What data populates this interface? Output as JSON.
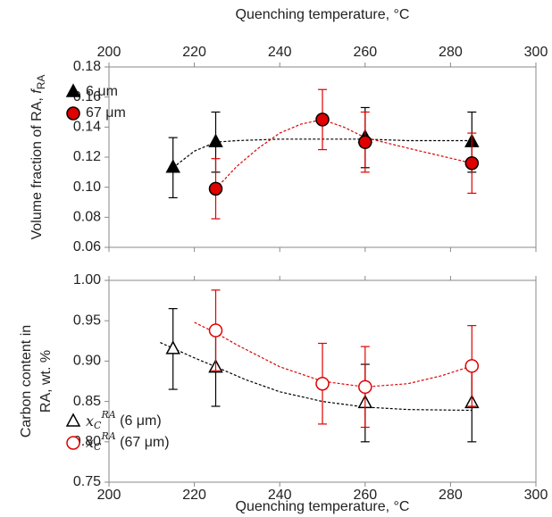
{
  "chart_data": [
    {
      "type": "scatter",
      "xlabel": "Quenching temperature, °C",
      "xaxis_position": "top",
      "ylabel": "Volume fraction of RA, ",
      "ylabel_symbol": "f",
      "ylabel_subscript": "RA",
      "xlim": [
        200,
        300
      ],
      "xticks": [
        200,
        220,
        240,
        260,
        280,
        300
      ],
      "ylim": [
        0.06,
        0.18
      ],
      "yticks": [
        0.06,
        0.08,
        {
          "value": 0.1,
          "label": "0.10"
        },
        0.12,
        0.14,
        0.16,
        0.18
      ],
      "legend": "upper left",
      "series": [
        {
          "name": "6 μm",
          "color": "#000000",
          "marker": "triangle",
          "filled": true,
          "x": [
            215,
            225,
            260,
            285
          ],
          "values": [
            0.113,
            0.13,
            0.133,
            0.13
          ],
          "errors": [
            0.02,
            0.02,
            0.02,
            0.02
          ],
          "trend": {
            "x": [
              215,
              220,
              225,
              230,
              240,
              250,
              260,
              270,
              285
            ],
            "y": [
              0.113,
              0.124,
              0.13,
              0.131,
              0.132,
              0.132,
              0.132,
              0.131,
              0.131
            ]
          }
        },
        {
          "name": "67 μm",
          "color": "#e00000",
          "marker": "circle",
          "filled": true,
          "x": [
            225,
            250,
            260,
            285
          ],
          "values": [
            0.099,
            0.145,
            0.13,
            0.116
          ],
          "errors": [
            0.02,
            0.02,
            0.02,
            0.02
          ],
          "trend": {
            "x": [
              225,
              230,
              235,
              240,
              245,
              250,
              255,
              260,
              270,
              285
            ],
            "y": [
              0.099,
              0.114,
              0.126,
              0.136,
              0.142,
              0.145,
              0.14,
              0.133,
              0.126,
              0.116
            ]
          }
        }
      ]
    },
    {
      "type": "scatter",
      "xlabel": "Quenching temperature, °C",
      "xaxis_position": "bottom",
      "ylabel": [
        "Carbon content in",
        "RA, wt. %"
      ],
      "xlim": [
        200,
        300
      ],
      "xticks": [
        200,
        220,
        240,
        260,
        280,
        300
      ],
      "ylim": [
        0.75,
        1.0
      ],
      "yticks": [
        0.75,
        {
          "value": 0.8,
          "label": "0.80"
        },
        0.85,
        {
          "value": 0.9,
          "label": "0.90"
        },
        0.95,
        {
          "value": 1.0,
          "label": "1.00"
        }
      ],
      "legend": "lower left",
      "series": [
        {
          "symbol": "x",
          "subscript": "C",
          "superscript": "RA",
          "name": " (6 μm)",
          "color": "#000000",
          "marker": "triangle",
          "filled": false,
          "x": [
            215,
            225,
            260,
            285
          ],
          "values": [
            0.915,
            0.892,
            0.848,
            0.848
          ],
          "errors": [
            0.05,
            0.048,
            0.048,
            0.048
          ],
          "trend": {
            "x": [
              212,
              220,
              225,
              232,
              240,
              250,
              260,
              270,
              285
            ],
            "y": [
              0.923,
              0.904,
              0.893,
              0.877,
              0.862,
              0.85,
              0.843,
              0.84,
              0.839
            ]
          }
        },
        {
          "symbol": "x",
          "subscript": "C",
          "superscript": "RA",
          "name": " (67 μm)",
          "color": "#e00000",
          "marker": "circle",
          "filled": false,
          "x": [
            225,
            250,
            260,
            285
          ],
          "values": [
            0.938,
            0.872,
            0.868,
            0.894
          ],
          "errors": [
            0.05,
            0.05,
            0.05,
            0.05
          ],
          "trend": {
            "x": [
              220,
              225,
              230,
              240,
              250,
              260,
              270,
              278,
              285
            ],
            "y": [
              0.948,
              0.935,
              0.92,
              0.893,
              0.875,
              0.868,
              0.872,
              0.882,
              0.894
            ]
          }
        }
      ]
    }
  ]
}
